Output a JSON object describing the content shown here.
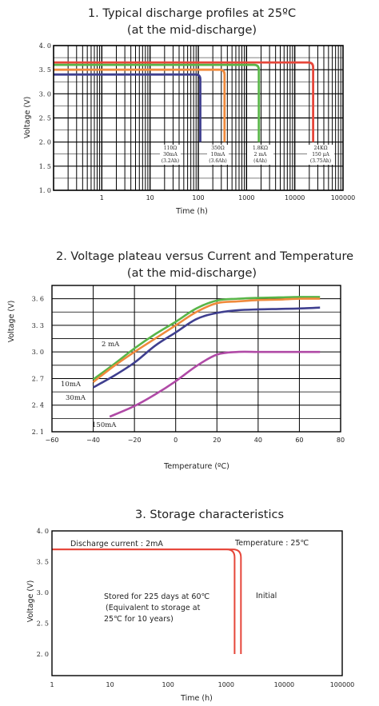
{
  "chart_data": [
    {
      "type": "line",
      "title": "1. Typical discharge profiles at 25ºC",
      "subtitle": "(at  the mid-discharge)",
      "xlabel": "Time (h)",
      "ylabel": "Voltage (V)",
      "xscale": "log",
      "xlim": [
        0.1,
        100000
      ],
      "ylim": [
        1.0,
        4.0
      ],
      "xticks": [
        "1",
        "10",
        "100",
        "1000",
        "10000",
        "100000"
      ],
      "yticks": [
        "1. 0",
        "1. 5",
        "2. 0",
        "2. 5",
        "3. 0",
        "3. 5",
        "4. 0"
      ],
      "grid": true,
      "series": [
        {
          "color": "#3f3f8f",
          "plateau": 3.4,
          "x_end": 110
        },
        {
          "color": "#f08a3c",
          "plateau": 3.5,
          "x_end": 350
        },
        {
          "color": "#58b548",
          "plateau": 3.6,
          "x_end": 1800
        },
        {
          "color": "#e6463a",
          "plateau": 3.65,
          "x_end": 24000
        }
      ],
      "annotations": [
        {
          "x": 110,
          "lines": [
            "110Ω",
            "30mA",
            "(3.2Ah)"
          ]
        },
        {
          "x": 350,
          "lines": [
            "350Ω",
            "10mA",
            "(3.6Ah)"
          ]
        },
        {
          "x": 1800,
          "lines": [
            "1.8KΩ",
            "2 mA",
            "(4Ah)"
          ]
        },
        {
          "x": 24000,
          "lines": [
            "24KΩ",
            "150 μA",
            "(3.75Ah)"
          ]
        }
      ]
    },
    {
      "type": "line",
      "title": "2. Voltage plateau versus Current and Temperature",
      "subtitle": "(at the mid-discharge)",
      "xlabel": "Temperature (ºC)",
      "ylabel": "Voltage (V)",
      "xlim": [
        -60,
        80
      ],
      "ylim": [
        2.1,
        3.75
      ],
      "xticks": [
        "−60",
        "−40",
        "−20",
        "0",
        "20",
        "40",
        "60",
        "80"
      ],
      "yticks": [
        "2. 1",
        "2. 4",
        "2. 7",
        "3. 0",
        "3. 3",
        "3. 6"
      ],
      "grid": true,
      "series": [
        {
          "name": "2 mA",
          "color": "#58b548",
          "x": [
            -40,
            -30,
            -20,
            -10,
            0,
            10,
            20,
            30,
            40,
            50,
            60,
            70
          ],
          "y": [
            2.69,
            2.86,
            3.04,
            3.2,
            3.34,
            3.49,
            3.58,
            3.6,
            3.61,
            3.615,
            3.62,
            3.62
          ]
        },
        {
          "name": "10mA",
          "color": "#f08a3c",
          "x": [
            -40,
            -30,
            -20,
            -10,
            0,
            10,
            20,
            30,
            40,
            50,
            60,
            70
          ],
          "y": [
            2.66,
            2.84,
            3.0,
            3.15,
            3.3,
            3.45,
            3.55,
            3.57,
            3.585,
            3.59,
            3.6,
            3.6
          ]
        },
        {
          "name": "30mA",
          "color": "#3f3f8f",
          "x": [
            -40,
            -30,
            -20,
            -10,
            0,
            10,
            20,
            30,
            40,
            50,
            60,
            70
          ],
          "y": [
            2.6,
            2.73,
            2.88,
            3.07,
            3.22,
            3.37,
            3.44,
            3.47,
            3.48,
            3.485,
            3.49,
            3.5
          ]
        },
        {
          "name": "150mA",
          "color": "#b04aa6",
          "x": [
            -32,
            -20,
            -10,
            0,
            10,
            20,
            30,
            40,
            50,
            60,
            70
          ],
          "y": [
            2.27,
            2.39,
            2.52,
            2.67,
            2.84,
            2.97,
            3.0,
            3.0,
            3.0,
            3.0,
            3.0
          ]
        }
      ],
      "labels": [
        {
          "text": "2 mA",
          "series": "2 mA"
        },
        {
          "text": "10mA",
          "series": "10mA"
        },
        {
          "text": "30mA",
          "series": "30mA"
        },
        {
          "text": "150mA",
          "series": "150mA"
        }
      ]
    },
    {
      "type": "line",
      "title": "3. Storage characteristics",
      "xlabel": "Time (h)",
      "ylabel": "Voltage (V)",
      "xscale": "log",
      "xlim": [
        1,
        100000
      ],
      "ylim": [
        1.65,
        4.0
      ],
      "xticks": [
        "1",
        "10",
        "100",
        "1000",
        "10000",
        "100000"
      ],
      "yticks": [
        "2. 0",
        "2. 5",
        "3. 0",
        "3. 5",
        "4. 0"
      ],
      "grid": false,
      "series": [
        {
          "color": "#e6463a",
          "plateau": 3.7,
          "x_end": 1400
        },
        {
          "color": "#e6463a",
          "plateau": 3.7,
          "x_end": 1800
        }
      ],
      "annotations": {
        "discharge_current": "Discharge current : 2mA",
        "temperature": "Temperature : 25℃",
        "stored": [
          "Stored for 225 days at 60℃",
          "(Equivalent to storage at",
          "25℃ for 10 years)"
        ],
        "initial": "Initial"
      }
    }
  ]
}
